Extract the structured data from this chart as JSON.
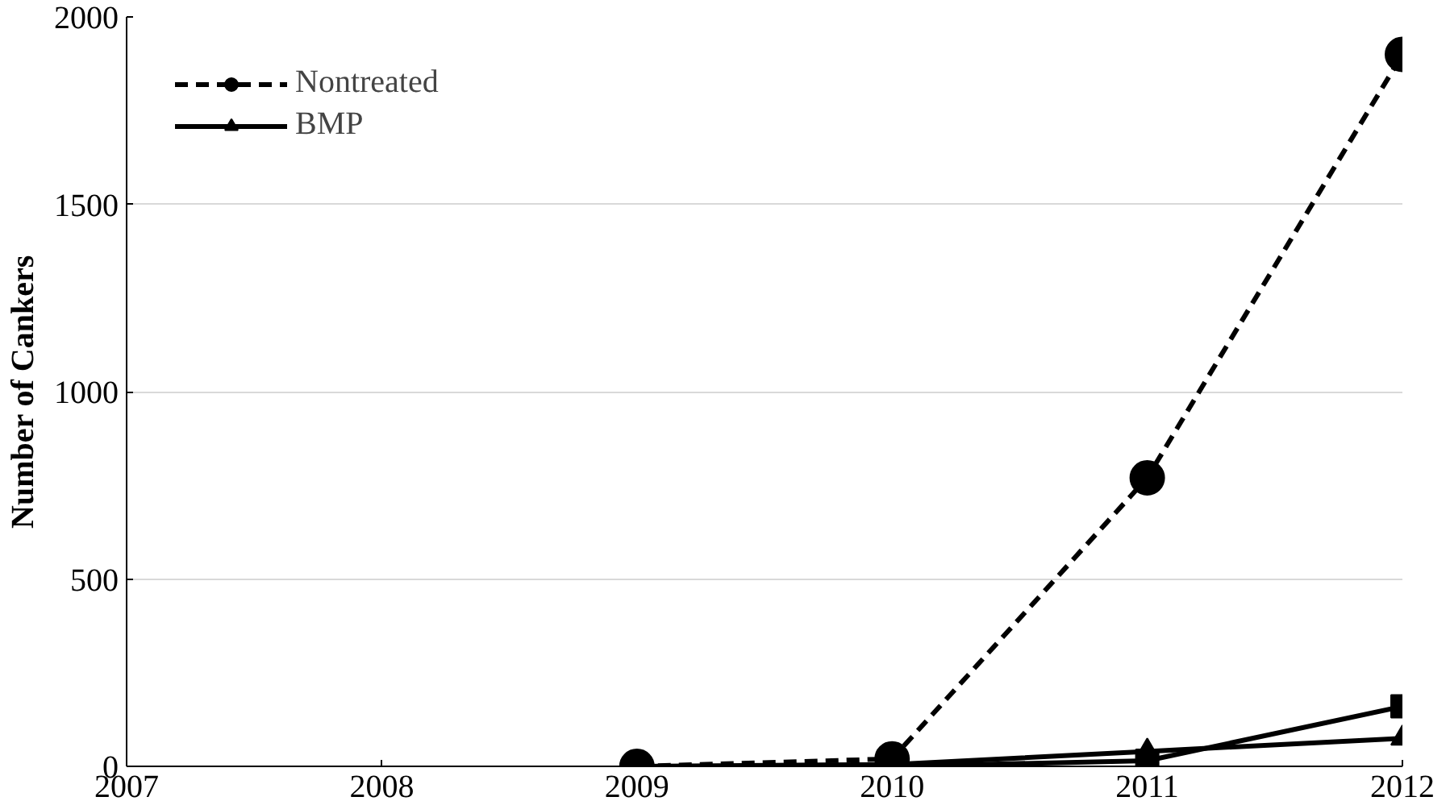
{
  "chart_data": {
    "type": "line",
    "ylabel": "Number of Cankers",
    "x": [
      2009,
      2010,
      2011,
      2012
    ],
    "series": [
      {
        "name": "Nontreated",
        "color": "#000000",
        "values": [
          0,
          20,
          770,
          1900
        ],
        "marker": "circle",
        "line_style": "dashed"
      },
      {
        "color": "#000000",
        "values": [
          0,
          0,
          15,
          160
        ],
        "marker": "square",
        "line_style": "solid"
      },
      {
        "name": "BMP",
        "color": "#000000",
        "values": [
          0,
          5,
          40,
          75
        ],
        "marker": "triangle",
        "line_style": "solid"
      }
    ],
    "xlim": [
      2007,
      2012
    ],
    "xticks": [
      2007,
      2008,
      2009,
      2010,
      2011,
      2012
    ],
    "ylim": [
      0,
      2000
    ],
    "yticks": [
      0,
      500,
      1000,
      1500,
      2000
    ],
    "grid": "y",
    "legend": "top left"
  }
}
